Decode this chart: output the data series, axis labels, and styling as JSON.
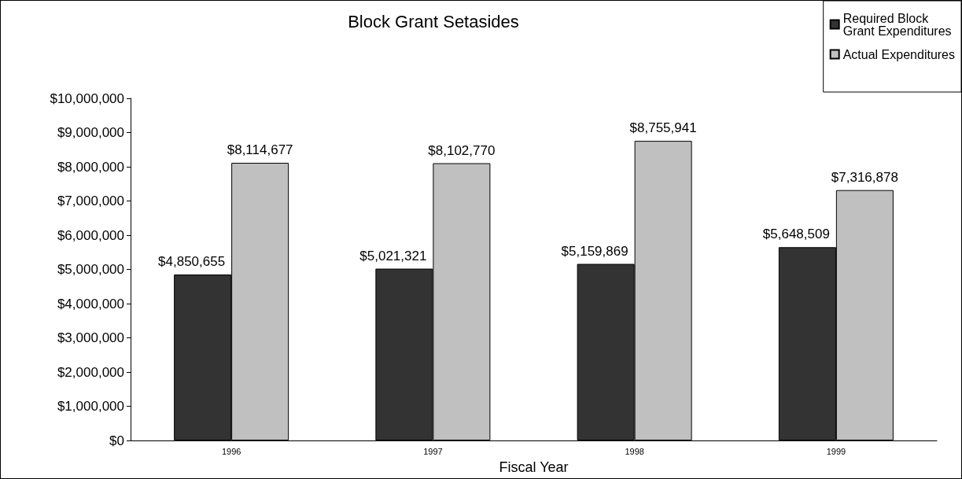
{
  "chart_data": {
    "type": "bar",
    "title": "Block Grant Setasides",
    "xlabel": "Fiscal Year",
    "categories": [
      "1996",
      "1997",
      "1998",
      "1999"
    ],
    "series": [
      {
        "name": "Required Block Grant Expenditures",
        "color": "#333333",
        "values": [
          4850655,
          5021321,
          5159869,
          5648509
        ],
        "value_labels": [
          "$4,850,655",
          "$5,021,321",
          "$5,159,869",
          "$5,648,509"
        ]
      },
      {
        "name": "Actual Expenditures",
        "color": "#c0c0c0",
        "values": [
          8114677,
          8102770,
          8755941,
          7316878
        ],
        "value_labels": [
          "$8,114,677",
          "$8,102,770",
          "$8,755,941",
          "$7,316,878"
        ]
      }
    ],
    "ylim": [
      0,
      10000000
    ],
    "yticks": [
      {
        "value": 0,
        "label": "$0"
      },
      {
        "value": 1000000,
        "label": "$1,000,000"
      },
      {
        "value": 2000000,
        "label": "$2,000,000"
      },
      {
        "value": 3000000,
        "label": "$3,000,000"
      },
      {
        "value": 4000000,
        "label": "$4,000,000"
      },
      {
        "value": 5000000,
        "label": "$5,000,000"
      },
      {
        "value": 6000000,
        "label": "$6,000,000"
      },
      {
        "value": 7000000,
        "label": "$7,000,000"
      },
      {
        "value": 8000000,
        "label": "$8,000,000"
      },
      {
        "value": 9000000,
        "label": "$9,000,000"
      },
      {
        "value": 10000000,
        "label": "$10,000,000"
      }
    ],
    "grid": false,
    "legend": "top right"
  }
}
